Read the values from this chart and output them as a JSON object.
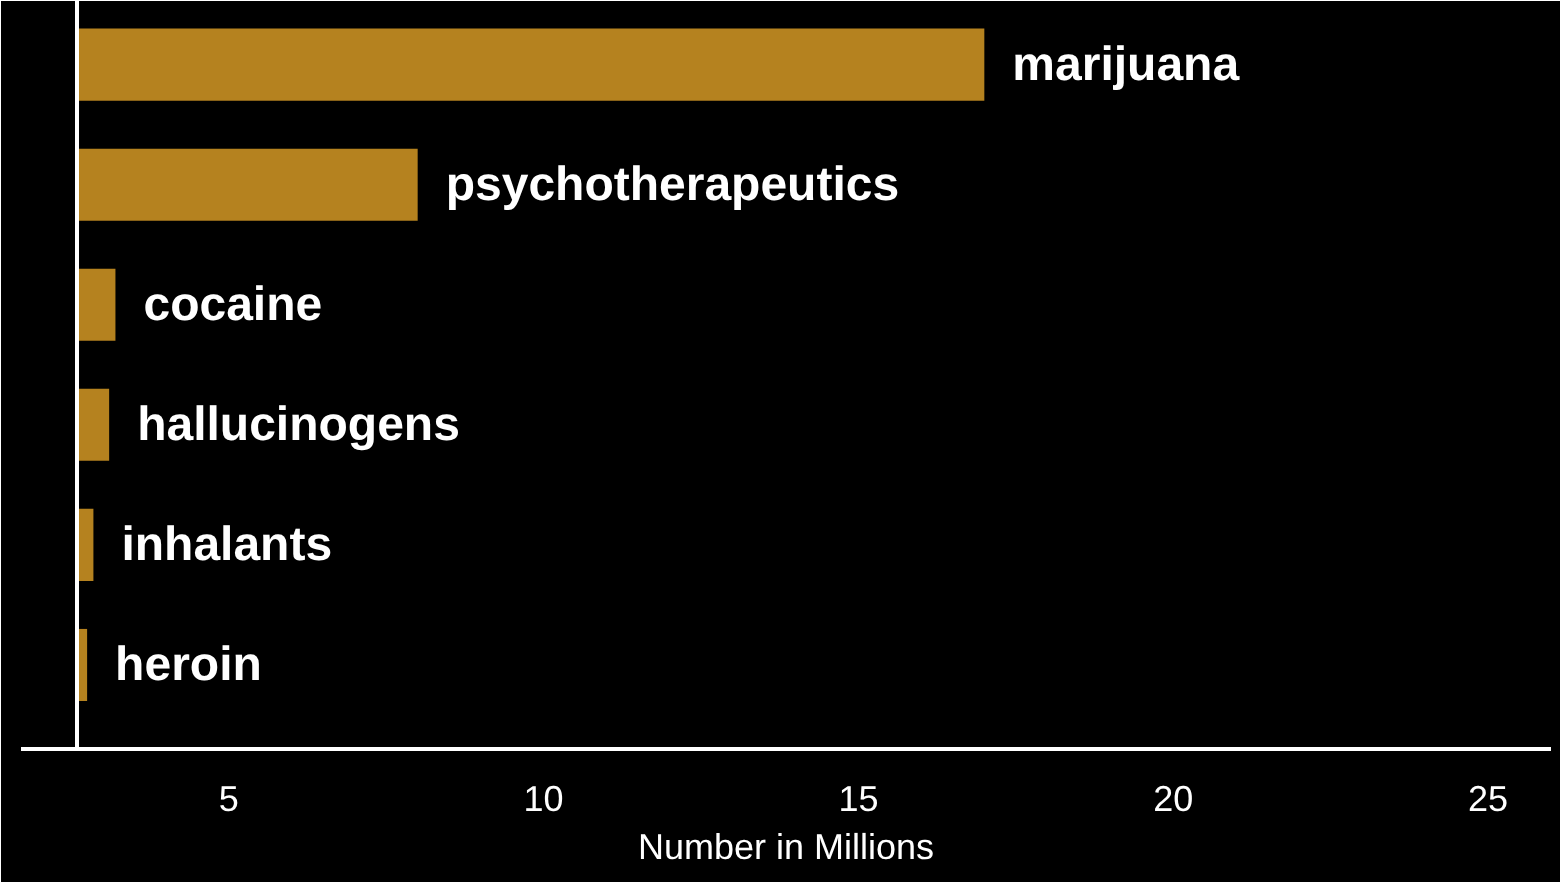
{
  "chart_data": {
    "type": "bar",
    "orientation": "horizontal",
    "xlabel": "Number in Millions",
    "categories": [
      "marijuana",
      "psychotherapeutics",
      "cocaine",
      "hallucinogens",
      "inhalants",
      "heroin"
    ],
    "base": [
      2.6,
      2.6,
      2.6,
      2.6,
      2.6,
      2.6
    ],
    "values": [
      14.4,
      5.4,
      0.6,
      0.5,
      0.25,
      0.15
    ],
    "color": "#b5821f",
    "xlim": [
      1.7,
      26
    ],
    "xticks": [
      5,
      10,
      15,
      20,
      25
    ],
    "grid": false
  }
}
